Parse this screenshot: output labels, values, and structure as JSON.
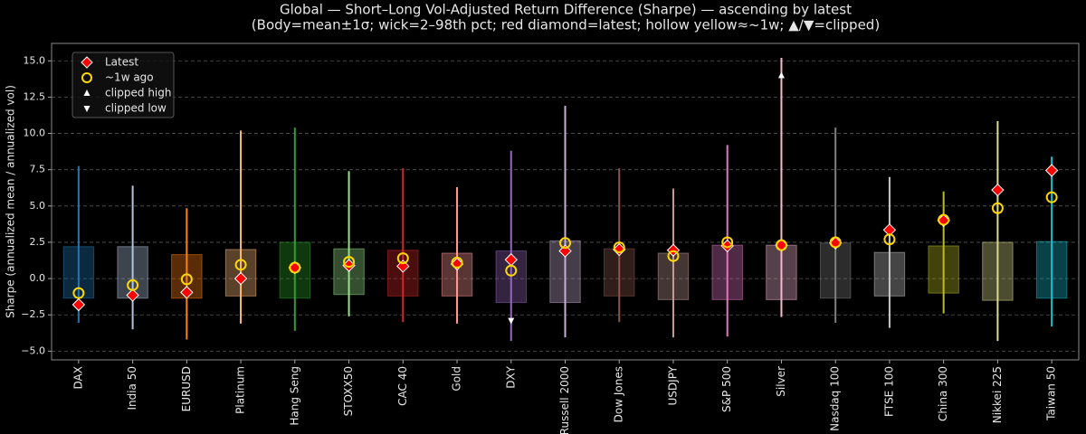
{
  "chart_data": {
    "type": "range-box",
    "title": "Global — Short–Long Vol-Adjusted Return Difference (Sharpe) — ascending by latest",
    "subtitle": "(Body=mean±1σ; wick=2–98th pct; red diamond=latest; hollow yellow≈~1w; ▲/▼=clipped)",
    "y_label": "Sharpe (annualized mean / annualized vol)",
    "categories": [
      "DAX",
      "India 50",
      "EURUSD",
      "Platinum",
      "Hang Seng",
      "STOXX50",
      "CAC 40",
      "Gold",
      "DXY",
      "Russell 2000",
      "Dow Jones",
      "USDJPY",
      "S&P 500",
      "Silver",
      "Nasdaq 100",
      "FTSE 100",
      "China 300",
      "Nikkei 225",
      "Taiwan 50"
    ],
    "colors": [
      "#1f77b4",
      "#b0c4de",
      "#ff7f0e",
      "#ffbb78",
      "#2ca02c",
      "#98df8a",
      "#d62728",
      "#ff9896",
      "#9467bd",
      "#c5b0d5",
      "#8c564b",
      "#c49c94",
      "#e377c2",
      "#f7b6d2",
      "#7f7f7f",
      "#c7c7c7",
      "#bcbd22",
      "#dbdb8d",
      "#17becf"
    ],
    "body_low": [
      -1.35,
      -1.35,
      -1.35,
      -1.2,
      -1.35,
      -1.1,
      -1.2,
      -1.2,
      -1.65,
      -1.65,
      -1.2,
      -1.45,
      -1.45,
      -1.45,
      -1.35,
      -1.2,
      -1.0,
      -1.5,
      -1.35
    ],
    "body_high": [
      2.2,
      2.2,
      1.65,
      2.0,
      2.5,
      2.05,
      1.95,
      1.75,
      1.9,
      2.6,
      2.05,
      1.75,
      2.3,
      2.3,
      2.45,
      1.8,
      2.25,
      2.5,
      2.55
    ],
    "wick_low": [
      -3.05,
      -3.5,
      -4.2,
      -3.1,
      -3.6,
      -2.6,
      -3.0,
      -3.1,
      -4.3,
      -4.05,
      -3.0,
      -4.05,
      -4.0,
      -2.65,
      -3.05,
      -3.4,
      -2.4,
      -4.3,
      -3.3
    ],
    "wick_high": [
      7.75,
      6.4,
      4.85,
      10.2,
      10.4,
      7.4,
      7.6,
      6.3,
      8.8,
      11.9,
      7.6,
      6.2,
      9.2,
      15.2,
      10.4,
      7.0,
      6.0,
      10.85,
      8.4
    ],
    "latest": [
      -1.8,
      -1.15,
      -0.95,
      0.0,
      0.75,
      0.9,
      0.85,
      1.0,
      1.3,
      1.9,
      2.0,
      1.95,
      2.25,
      2.3,
      2.45,
      3.35,
      4.0,
      6.1,
      7.45
    ],
    "week_ago": [
      -1.0,
      -0.45,
      -0.05,
      0.95,
      0.75,
      1.15,
      1.4,
      1.1,
      0.55,
      2.45,
      2.15,
      1.55,
      2.5,
      2.3,
      2.5,
      2.7,
      4.05,
      4.85,
      5.6
    ],
    "clipped_high": [
      null,
      null,
      null,
      null,
      null,
      null,
      null,
      null,
      null,
      null,
      null,
      null,
      null,
      14.0,
      null,
      null,
      null,
      null,
      null
    ],
    "clipped_low": [
      null,
      null,
      null,
      null,
      null,
      null,
      null,
      null,
      -2.9,
      null,
      null,
      null,
      null,
      null,
      null,
      null,
      null,
      null,
      null
    ],
    "latest_color": "#ff0000",
    "week_color": "#ffd700",
    "legend": [
      "Latest",
      "~1w ago",
      "clipped high",
      "clipped low"
    ],
    "ylim": [
      -5.6,
      16.2
    ],
    "yticks": [
      {
        "value": -5,
        "label": "−5.0"
      },
      {
        "value": -2.5,
        "label": "−2.5"
      },
      {
        "value": 0,
        "label": "0.0"
      },
      {
        "value": 2.5,
        "label": "2.5"
      },
      {
        "value": 5,
        "label": "5.0"
      },
      {
        "value": 7.5,
        "label": "7.5"
      },
      {
        "value": 10,
        "label": "10.0"
      },
      {
        "value": 12.5,
        "label": "12.5"
      },
      {
        "value": 15,
        "label": "15.0"
      }
    ],
    "grid": true
  }
}
